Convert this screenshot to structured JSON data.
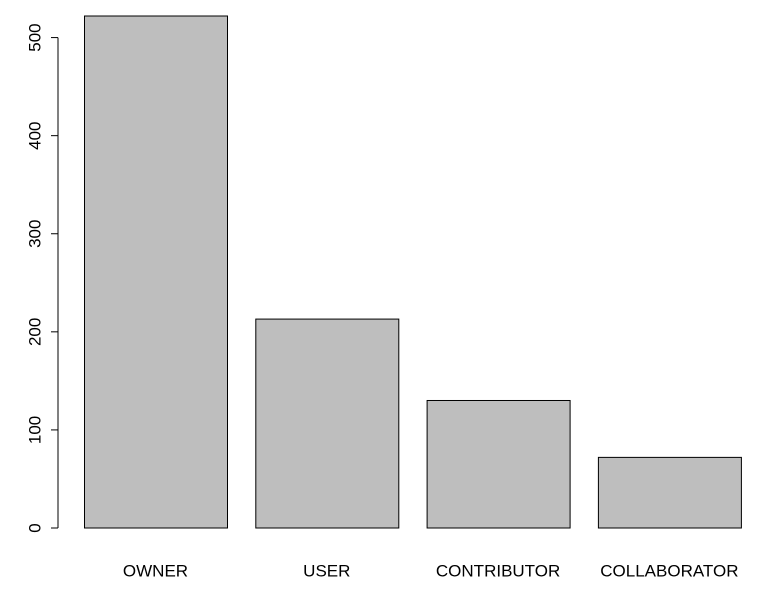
{
  "chart_data": {
    "type": "bar",
    "categories": [
      "OWNER",
      "USER",
      "CONTRIBUTOR",
      "COLLABORATOR"
    ],
    "values": [
      522,
      213,
      130,
      72
    ],
    "color": "#bebebe",
    "ylim": [
      0,
      522
    ],
    "yticks": [
      0,
      100,
      200,
      300,
      400,
      500
    ],
    "grid": false
  }
}
